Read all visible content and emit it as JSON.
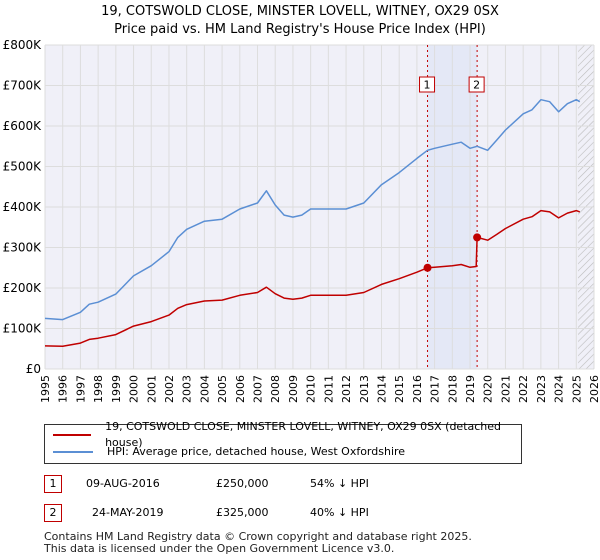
{
  "title_line1": "19, COTSWOLD CLOSE, MINSTER LOVELL, WITNEY, OX29 0SX",
  "title_line2": "Price paid vs. HM Land Registry's House Price Index (HPI)",
  "colors": {
    "price": "#c00000",
    "hpi": "#5b8fd4",
    "grid": "#dddddd",
    "plot_bg": "#f0f0f8",
    "hatch": "#bbbbbb"
  },
  "legend": {
    "price_label": "19, COTSWOLD CLOSE, MINSTER LOVELL, WITNEY, OX29 0SX (detached house)",
    "hpi_label": "HPI: Average price, detached house, West Oxfordshire"
  },
  "transactions": [
    {
      "num": "1",
      "date": "09-AUG-2016",
      "price": "£250,000",
      "pct": "54% ↓ HPI"
    },
    {
      "num": "2",
      "date": "24-MAY-2019",
      "price": "£325,000",
      "pct": "40% ↓ HPI"
    }
  ],
  "footer_line1": "Contains HM Land Registry data © Crown copyright and database right 2025.",
  "footer_line2": "This data is licensed under the Open Government Licence v3.0.",
  "chart_data": {
    "type": "line",
    "xlim": [
      1995,
      2026
    ],
    "ylim": [
      0,
      800000
    ],
    "y_ticks": [
      0,
      100000,
      200000,
      300000,
      400000,
      500000,
      600000,
      700000,
      800000
    ],
    "y_tick_labels": [
      "£0",
      "£100K",
      "£200K",
      "£300K",
      "£400K",
      "£500K",
      "£600K",
      "£700K",
      "£800K"
    ],
    "x_ticks": [
      1995,
      1996,
      1997,
      1998,
      1999,
      2000,
      2001,
      2002,
      2003,
      2004,
      2005,
      2006,
      2007,
      2008,
      2009,
      2010,
      2011,
      2012,
      2013,
      2014,
      2015,
      2016,
      2017,
      2018,
      2019,
      2020,
      2021,
      2022,
      2023,
      2024,
      2025,
      2026
    ],
    "highlight_range": [
      2016.6,
      2019.4
    ],
    "hatch_from": 2025.1,
    "markers": [
      {
        "label": "1",
        "x": 2016.6,
        "y": 250000
      },
      {
        "label": "2",
        "x": 2019.4,
        "y": 325000
      }
    ],
    "series": [
      {
        "name": "HPI: Average price, detached house, West Oxfordshire",
        "color": "#5b8fd4",
        "x": [
          1995,
          1996,
          1997,
          1997.5,
          1998,
          1999,
          2000,
          2001,
          2002,
          2002.5,
          2003,
          2004,
          2005,
          2006,
          2007,
          2007.5,
          2008,
          2008.5,
          2009,
          2009.5,
          2010,
          2011,
          2012,
          2013,
          2014,
          2015,
          2016,
          2016.6,
          2017,
          2018,
          2018.5,
          2019,
          2019.4,
          2020,
          2020.5,
          2021,
          2022,
          2022.5,
          2023,
          2023.5,
          2024,
          2024.5,
          2025,
          2025.2
        ],
        "y": [
          125000,
          122000,
          140000,
          160000,
          165000,
          185000,
          230000,
          255000,
          290000,
          325000,
          345000,
          365000,
          370000,
          395000,
          410000,
          440000,
          405000,
          380000,
          375000,
          380000,
          395000,
          395000,
          395000,
          410000,
          455000,
          485000,
          520000,
          540000,
          545000,
          555000,
          560000,
          545000,
          550000,
          540000,
          565000,
          590000,
          630000,
          640000,
          665000,
          660000,
          635000,
          655000,
          665000,
          660000
        ]
      },
      {
        "name": "19, COTSWOLD CLOSE, MINSTER LOVELL, WITNEY, OX29 0SX (detached house)",
        "color": "#c00000",
        "x": [
          1995,
          1996,
          1997,
          1997.5,
          1998,
          1999,
          2000,
          2001,
          2002,
          2002.5,
          2003,
          2004,
          2005,
          2006,
          2007,
          2007.5,
          2008,
          2008.5,
          2009,
          2009.5,
          2010,
          2011,
          2012,
          2013,
          2014,
          2015,
          2016,
          2016.6,
          2017,
          2018,
          2018.5,
          2019,
          2019.35,
          2019.4,
          2020,
          2020.5,
          2021,
          2022,
          2022.5,
          2023,
          2023.5,
          2024,
          2024.5,
          2025,
          2025.2
        ],
        "y": [
          57000,
          56000,
          64000,
          73000,
          76000,
          85000,
          106000,
          117000,
          133000,
          150000,
          159000,
          168000,
          170000,
          182000,
          189000,
          202000,
          186000,
          175000,
          172000,
          175000,
          182000,
          182000,
          182000,
          189000,
          209000,
          223000,
          239000,
          250000,
          251000,
          255000,
          258000,
          251000,
          253000,
          325000,
          318000,
          332000,
          347000,
          370000,
          376000,
          391000,
          388000,
          373000,
          385000,
          391000,
          388000
        ]
      }
    ]
  }
}
